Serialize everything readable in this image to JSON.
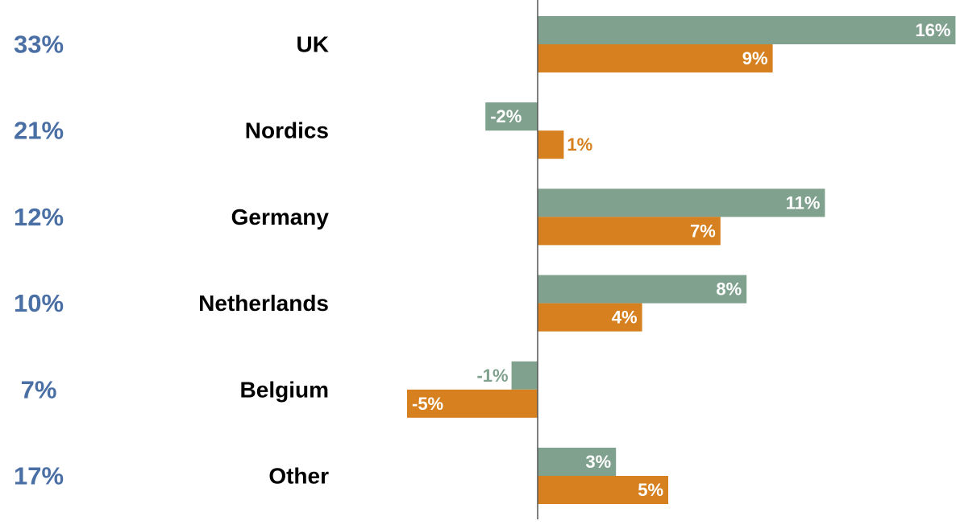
{
  "chart_data": {
    "type": "bar",
    "orientation": "horizontal",
    "categories": [
      "UK",
      "Nordics",
      "Germany",
      "Netherlands",
      "Belgium",
      "Other"
    ],
    "shares": [
      "33%",
      "21%",
      "12%",
      "10%",
      "7%",
      "17%"
    ],
    "series": [
      {
        "values": [
          16,
          -2,
          11,
          8,
          -1,
          3
        ],
        "labels": [
          "16%",
          "-2%",
          "11%",
          "8%",
          "-1%",
          "3%"
        ],
        "color": "#7fa18e"
      },
      {
        "values": [
          9,
          1,
          7,
          4,
          -5,
          5
        ],
        "labels": [
          "9%",
          "1%",
          "7%",
          "4%",
          "-5%",
          "5%"
        ],
        "color": "#d6801f"
      }
    ],
    "xlim": [
      -5,
      16
    ],
    "grid": false,
    "legend": "none"
  },
  "colors": {
    "share_text": "#4a6fa5",
    "axis": "#555555",
    "label_inside": "#ffffff"
  }
}
